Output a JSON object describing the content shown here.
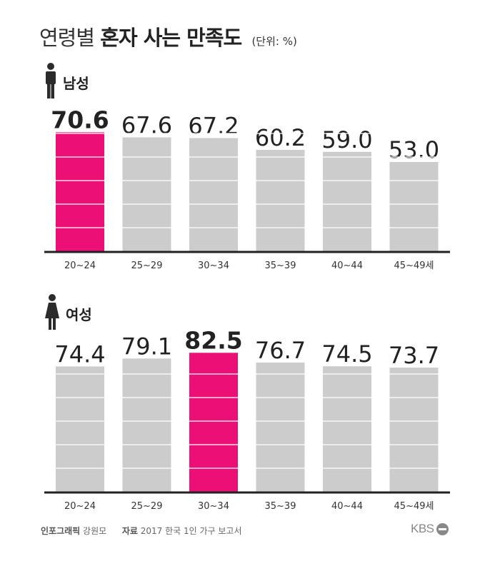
{
  "title": {
    "part1": "연령별",
    "part2": "혼자 사는 만족도",
    "unit": "(단위: %)"
  },
  "footer": {
    "credit_label": "인포그래픽",
    "credit_name": "강원모",
    "source_label": "자료",
    "source_text": "2017 한국 1인 가구 보고서",
    "brand": "KBS"
  },
  "colors": {
    "highlight": "#ec0f75",
    "bar": "#cccccc",
    "axis": "#222222",
    "icon": "#2b2b2b"
  },
  "chart_data": [
    {
      "type": "bar",
      "title": "남성",
      "icon": "male-icon",
      "categories": [
        "20~24",
        "25~29",
        "30~34",
        "35~39",
        "40~44",
        "45~49세"
      ],
      "values": [
        70.6,
        67.6,
        67.2,
        60.2,
        59.0,
        53.0
      ],
      "labels": [
        "70.6",
        "67.6",
        "67.2",
        "60.2",
        "59.0",
        "53.0"
      ],
      "highlight_index": 0,
      "ylim": [
        0,
        100
      ],
      "grid": true
    },
    {
      "type": "bar",
      "title": "여성",
      "icon": "female-icon",
      "categories": [
        "20~24",
        "25~29",
        "30~34",
        "35~39",
        "40~44",
        "45~49세"
      ],
      "values": [
        74.4,
        79.1,
        82.5,
        76.7,
        74.5,
        73.7
      ],
      "labels": [
        "74.4",
        "79.1",
        "82.5",
        "76.7",
        "74.5",
        "73.7"
      ],
      "highlight_index": 2,
      "ylim": [
        0,
        100
      ],
      "grid": true
    }
  ]
}
